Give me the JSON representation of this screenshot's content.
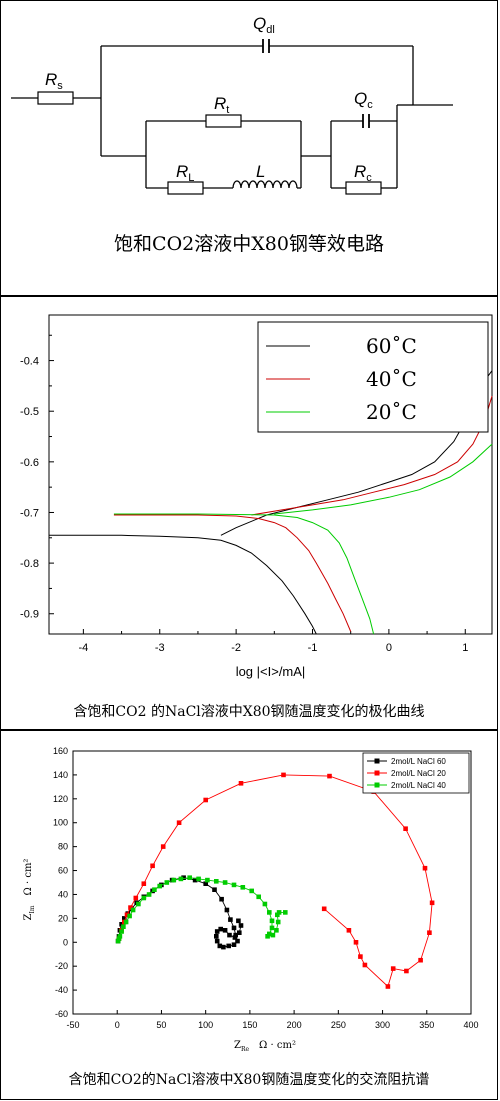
{
  "circuit": {
    "labels": {
      "Rs": "R",
      "Rs_sub": "s",
      "Qdl": "Q",
      "Qdl_sub": "dl",
      "Rt": "R",
      "Rt_sub": "t",
      "Qc": "Q",
      "Qc_sub": "c",
      "RL": "R",
      "RL_sub": "L",
      "L": "L",
      "Rc": "R",
      "Rc_sub": "c"
    },
    "caption": "饱和CO2溶液中X80钢等效电路"
  },
  "chart_data": [
    {
      "type": "line",
      "title": "",
      "caption": "含饱和CO2 的NaCl溶液中X80钢随温度变化的极化曲线",
      "xlabel": "log |<I>/mA|",
      "ylabel": "",
      "xlim": [
        -4.45,
        1.35
      ],
      "ylim": [
        -0.94,
        -0.31
      ],
      "xticks": [
        -4,
        -3,
        -2,
        -1,
        0,
        1
      ],
      "yticks": [
        -0.4,
        -0.5,
        -0.6,
        -0.7,
        -0.8,
        -0.9
      ],
      "grid": false,
      "legend": "top-right",
      "series": [
        {
          "name": "60˚C",
          "color": "#000000",
          "cathodic": [
            [
              -4.45,
              -0.745
            ],
            [
              -3.5,
              -0.745
            ],
            [
              -3.0,
              -0.747
            ],
            [
              -2.5,
              -0.75
            ],
            [
              -2.2,
              -0.755
            ],
            [
              -2.0,
              -0.765
            ],
            [
              -1.8,
              -0.78
            ],
            [
              -1.6,
              -0.805
            ],
            [
              -1.4,
              -0.835
            ],
            [
              -1.25,
              -0.865
            ],
            [
              -1.1,
              -0.9
            ],
            [
              -1.0,
              -0.925
            ],
            [
              -0.95,
              -0.94
            ]
          ],
          "anodic": [
            [
              -2.2,
              -0.745
            ],
            [
              -2.0,
              -0.73
            ],
            [
              -1.6,
              -0.705
            ],
            [
              -1.2,
              -0.69
            ],
            [
              -0.8,
              -0.675
            ],
            [
              -0.4,
              -0.66
            ],
            [
              0,
              -0.64
            ],
            [
              0.3,
              -0.625
            ],
            [
              0.6,
              -0.6
            ],
            [
              0.85,
              -0.56
            ],
            [
              1.0,
              -0.52
            ],
            [
              1.15,
              -0.47
            ],
            [
              1.3,
              -0.43
            ],
            [
              1.35,
              -0.42
            ]
          ]
        },
        {
          "name": "40˚C",
          "color": "#cc0000",
          "cathodic": [
            [
              -3.6,
              -0.705
            ],
            [
              -2.5,
              -0.705
            ],
            [
              -2.0,
              -0.707
            ],
            [
              -1.7,
              -0.712
            ],
            [
              -1.5,
              -0.72
            ],
            [
              -1.35,
              -0.73
            ],
            [
              -1.2,
              -0.75
            ],
            [
              -1.05,
              -0.775
            ],
            [
              -0.95,
              -0.8
            ],
            [
              -0.8,
              -0.84
            ],
            [
              -0.7,
              -0.87
            ],
            [
              -0.6,
              -0.9
            ],
            [
              -0.5,
              -0.935
            ]
          ],
          "anodic": [
            [
              -1.8,
              -0.705
            ],
            [
              -1.4,
              -0.695
            ],
            [
              -1.0,
              -0.685
            ],
            [
              -0.6,
              -0.675
            ],
            [
              -0.2,
              -0.66
            ],
            [
              0.2,
              -0.645
            ],
            [
              0.6,
              -0.625
            ],
            [
              0.9,
              -0.6
            ],
            [
              1.1,
              -0.565
            ],
            [
              1.25,
              -0.52
            ],
            [
              1.35,
              -0.47
            ]
          ]
        },
        {
          "name": "20˚C",
          "color": "#00cc00",
          "cathodic": [
            [
              -3.6,
              -0.703
            ],
            [
              -2.5,
              -0.703
            ],
            [
              -2.0,
              -0.704
            ],
            [
              -1.5,
              -0.705
            ],
            [
              -1.2,
              -0.71
            ],
            [
              -1.0,
              -0.72
            ],
            [
              -0.8,
              -0.735
            ],
            [
              -0.65,
              -0.76
            ],
            [
              -0.55,
              -0.79
            ],
            [
              -0.45,
              -0.83
            ],
            [
              -0.35,
              -0.87
            ],
            [
              -0.25,
              -0.91
            ],
            [
              -0.2,
              -0.94
            ]
          ],
          "anodic": [
            [
              -1.5,
              -0.703
            ],
            [
              -1.0,
              -0.695
            ],
            [
              -0.5,
              -0.685
            ],
            [
              0,
              -0.67
            ],
            [
              0.4,
              -0.655
            ],
            [
              0.8,
              -0.63
            ],
            [
              1.1,
              -0.6
            ],
            [
              1.35,
              -0.565
            ]
          ]
        }
      ]
    },
    {
      "type": "scatter",
      "title": "",
      "caption": "含饱和CO2的NaCl溶液中X80钢随温度变化的交流阻抗谱",
      "xlabel": "Z",
      "xlabel_sub": "Re",
      "xlabel_unit": "Ω · cm²",
      "ylabel": "Z",
      "ylabel_sub": "Im",
      "ylabel_unit": "Ω · cm²",
      "xlim": [
        -50,
        400
      ],
      "ylim": [
        -60,
        160
      ],
      "xticks": [
        -50,
        0,
        50,
        100,
        150,
        200,
        250,
        300,
        350,
        400
      ],
      "yticks": [
        -60,
        -40,
        -20,
        0,
        20,
        40,
        60,
        80,
        100,
        120,
        140,
        160
      ],
      "grid": false,
      "legend": "top-right",
      "series": [
        {
          "name": "2mol/L NaCl 60",
          "color": "#000000",
          "points": [
            [
              1,
              1
            ],
            [
              2,
              5
            ],
            [
              3,
              10
            ],
            [
              5,
              15
            ],
            [
              8,
              20
            ],
            [
              12,
              24
            ],
            [
              16,
              28
            ],
            [
              22,
              33
            ],
            [
              30,
              38
            ],
            [
              40,
              43
            ],
            [
              50,
              48
            ],
            [
              62,
              52
            ],
            [
              75,
              54
            ],
            [
              88,
              52
            ],
            [
              100,
              49
            ],
            [
              110,
              44
            ],
            [
              118,
              36
            ],
            [
              124,
              27
            ],
            [
              128,
              19
            ],
            [
              132,
              12
            ],
            [
              134,
              6
            ],
            [
              136,
              1
            ],
            [
              132,
              -2
            ],
            [
              126,
              -3
            ],
            [
              120,
              -4
            ],
            [
              116,
              -3
            ],
            [
              113,
              1
            ],
            [
              112,
              5
            ],
            [
              113,
              9
            ],
            [
              117,
              11
            ],
            [
              122,
              10
            ],
            [
              127,
              6
            ],
            [
              133,
              4
            ],
            [
              138,
              8
            ],
            [
              140,
              14
            ],
            [
              137,
              18
            ]
          ]
        },
        {
          "name": "2mol/L NaCl 20",
          "color": "#ff0000",
          "points": [
            [
              2,
              3
            ],
            [
              5,
              10
            ],
            [
              8,
              17
            ],
            [
              11,
              23
            ],
            [
              15,
              29
            ],
            [
              21,
              37
            ],
            [
              30,
              49
            ],
            [
              40,
              64
            ],
            [
              52,
              80
            ],
            [
              70,
              100
            ],
            [
              100,
              119
            ],
            [
              140,
              133
            ],
            [
              188,
              140
            ],
            [
              240,
              139
            ],
            [
              290,
              126
            ],
            [
              326,
              95
            ],
            [
              348,
              62
            ],
            [
              356,
              33
            ],
            [
              353,
              8
            ],
            [
              343,
              -15
            ],
            [
              327,
              -24
            ],
            [
              312,
              -22
            ],
            [
              306,
              -37
            ],
            [
              280,
              -19
            ],
            [
              275,
              -12
            ],
            [
              270,
              0
            ],
            [
              262,
              10
            ],
            [
              234,
              28
            ]
          ]
        },
        {
          "name": "2mol/L NaCl 40",
          "color": "#00cc00",
          "points": [
            [
              1,
              1
            ],
            [
              2,
              3
            ],
            [
              3,
              5
            ],
            [
              5,
              9
            ],
            [
              7,
              13
            ],
            [
              10,
              17
            ],
            [
              14,
              22
            ],
            [
              18,
              27
            ],
            [
              24,
              32
            ],
            [
              30,
              37
            ],
            [
              36,
              40
            ],
            [
              42,
              44
            ],
            [
              48,
              47
            ],
            [
              56,
              50
            ],
            [
              64,
              52
            ],
            [
              72,
              53
            ],
            [
              82,
              54
            ],
            [
              92,
              53
            ],
            [
              102,
              52
            ],
            [
              112,
              51
            ],
            [
              122,
              50
            ],
            [
              132,
              48
            ],
            [
              142,
              46
            ],
            [
              152,
              43
            ],
            [
              160,
              38
            ],
            [
              167,
              32
            ],
            [
              172,
              25
            ],
            [
              175,
              18
            ],
            [
              175,
              12
            ],
            [
              172,
              7
            ],
            [
              170,
              5
            ],
            [
              176,
              6
            ],
            [
              180,
              10
            ],
            [
              182,
              17
            ],
            [
              181,
              23
            ],
            [
              183,
              25
            ],
            [
              190,
              25
            ]
          ]
        }
      ]
    }
  ]
}
